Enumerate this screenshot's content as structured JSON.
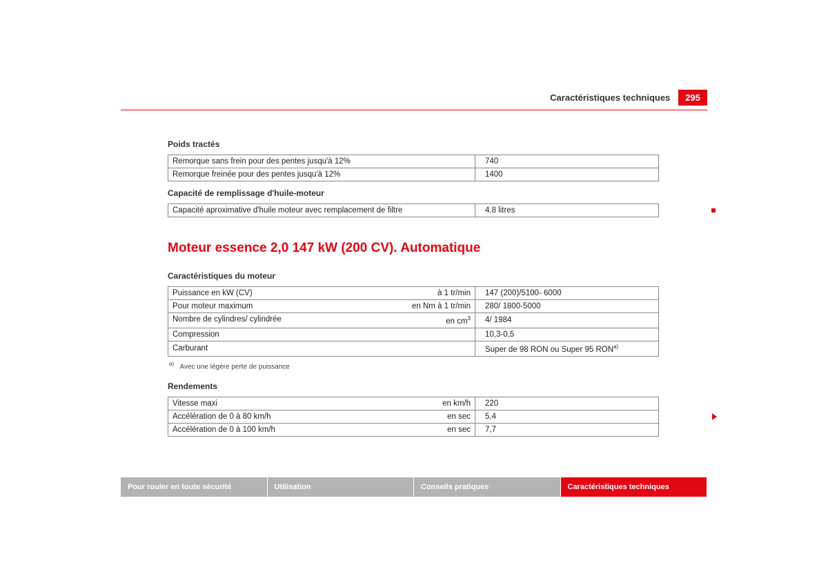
{
  "header": {
    "section_title": "Caractéristiques techniques",
    "page_number": "295"
  },
  "colors": {
    "brand_red": "#e30613",
    "tab_grey": "#b3b3b3",
    "text": "#222222",
    "border": "#888888"
  },
  "sections": {
    "towed_weights": {
      "title": "Poids tractés",
      "rows": [
        {
          "label": "Remorque sans frein pour des pentes jusqu'à 12%",
          "value": "740"
        },
        {
          "label": "Remorque freinée pour des pentes jusqu'à 12%",
          "value": "1400"
        }
      ]
    },
    "oil_capacity": {
      "title": "Capacité de remplissage d'huile-moteur",
      "rows": [
        {
          "label": "Capacité aproximative d'huile moteur avec remplacement de filtre",
          "value": "4,8 litres"
        }
      ]
    },
    "engine_heading": "Moteur essence 2,0 147 kW (200 CV). Automatique",
    "engine_specs": {
      "title": "Caractéristiques du moteur",
      "rows": [
        {
          "label": "Puissance en kW (CV)",
          "unit": "à 1 tr/min",
          "value": "147 (200)/5100- 6000"
        },
        {
          "label": "Pour moteur maximum",
          "unit": "en Nm à 1 tr/min",
          "value": "280/ 1800-5000"
        },
        {
          "label": "Nombre de cylindres/ cylindrée",
          "unit_html": "en cm<sup>3</sup>",
          "value": "4/ 1984"
        },
        {
          "label": "Compression",
          "unit": "",
          "value": "10,3-0,5"
        },
        {
          "label": "Carburant",
          "unit": "",
          "value_html": "Super de 98 RON ou Super 95 RON<sup>a)</sup>"
        }
      ],
      "footnote_marker": "a)",
      "footnote_text": "Avec une légère perte de puissance"
    },
    "performance": {
      "title": "Rendements",
      "rows": [
        {
          "label": "Vitesse maxi",
          "unit": "en km/h",
          "value": "220"
        },
        {
          "label": "Accélération de 0 à 80 km/h",
          "unit": "en sec",
          "value": "5,4"
        },
        {
          "label": "Accélération de 0 à 100 km/h",
          "unit": "en sec",
          "value": "7,7"
        }
      ]
    }
  },
  "footer_tabs": {
    "items": [
      {
        "label": "Pour rouler en toute sécurité",
        "active": false
      },
      {
        "label": "Utilisation",
        "active": false
      },
      {
        "label": "Conseils pratiques",
        "active": false
      },
      {
        "label": "Caractéristiques techniques",
        "active": true
      }
    ]
  }
}
